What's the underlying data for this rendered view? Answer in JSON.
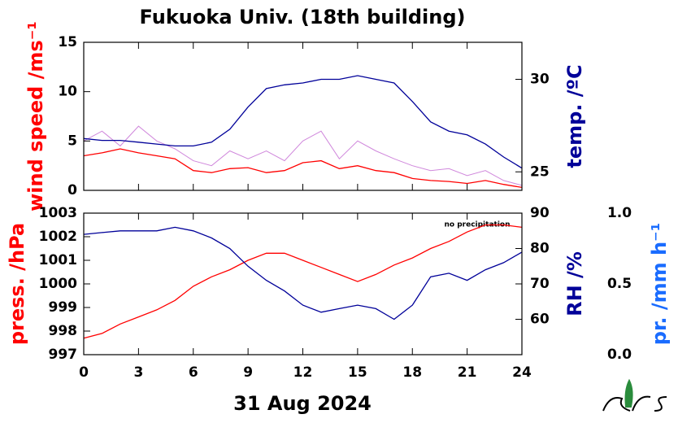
{
  "chart_data": [
    {
      "type": "line",
      "title": "Fukuoka Univ. (18th building)",
      "ylabel": "wind speed /ms⁻¹",
      "y2label": "temp. /ºC",
      "x": [
        0,
        1,
        2,
        3,
        4,
        5,
        6,
        7,
        8,
        9,
        10,
        11,
        12,
        13,
        14,
        15,
        16,
        17,
        18,
        19,
        20,
        21,
        22,
        23,
        24
      ],
      "series": [
        {
          "color": "#d088dc",
          "axis": "y",
          "values": [
            5,
            6,
            4.5,
            6.5,
            5,
            4.2,
            3,
            2.5,
            4,
            3.2,
            4,
            3,
            5,
            6,
            3.2,
            5,
            4,
            3.2,
            2.5,
            2,
            2.2,
            1.5,
            2,
            1,
            0.5
          ]
        },
        {
          "color": "#ff0000",
          "axis": "y",
          "values": [
            3.5,
            3.8,
            4.2,
            3.8,
            3.5,
            3.2,
            2,
            1.8,
            2.2,
            2.3,
            1.8,
            2,
            2.8,
            3,
            2.2,
            2.5,
            2,
            1.8,
            1.2,
            1,
            0.9,
            0.7,
            1,
            0.6,
            0.3
          ]
        },
        {
          "color": "#000099",
          "axis": "y2",
          "values": [
            26.8,
            26.7,
            26.7,
            26.6,
            26.5,
            26.4,
            26.4,
            26.6,
            27.3,
            28.5,
            29.5,
            29.7,
            29.8,
            30,
            30,
            30.2,
            30,
            29.8,
            28.8,
            27.7,
            27.2,
            27,
            26.5,
            25.8,
            25.2
          ]
        }
      ],
      "ylim": [
        0,
        15
      ],
      "yticks": [
        0,
        5,
        10,
        15
      ],
      "y2lim": [
        24,
        32
      ],
      "y2ticks": [
        25,
        30
      ]
    },
    {
      "type": "line",
      "ylabel": "press. /hPa",
      "y2label": "RH /%",
      "y3label": "pr. /mm h⁻¹",
      "xlabel": "31 Aug 2024",
      "annotation": "no precipitation",
      "x": [
        0,
        1,
        2,
        3,
        4,
        5,
        6,
        7,
        8,
        9,
        10,
        11,
        12,
        13,
        14,
        15,
        16,
        17,
        18,
        19,
        20,
        21,
        22,
        23,
        24
      ],
      "series": [
        {
          "color": "#ff0000",
          "axis": "y",
          "values": [
            997.7,
            997.9,
            998.3,
            998.6,
            998.9,
            999.3,
            999.9,
            1000.3,
            1000.6,
            1001,
            1001.3,
            1001.3,
            1001,
            1000.7,
            1000.4,
            1000.1,
            1000.4,
            1000.8,
            1001.1,
            1001.5,
            1001.8,
            1002.2,
            1002.5,
            1002.5,
            1002.4
          ]
        },
        {
          "color": "#000099",
          "axis": "y2",
          "values": [
            84,
            84.5,
            85,
            85,
            85,
            86,
            85,
            83,
            80,
            75,
            71,
            68,
            64,
            62,
            63,
            64,
            63,
            60,
            64,
            72,
            73,
            71,
            74,
            76,
            79
          ]
        }
      ],
      "xlim": [
        0,
        24
      ],
      "xticks": [
        0,
        3,
        6,
        9,
        12,
        15,
        18,
        21,
        24
      ],
      "ylim": [
        997,
        1003
      ],
      "yticks": [
        997,
        998,
        999,
        1000,
        1001,
        1002,
        1003
      ],
      "y2lim": [
        50,
        90
      ],
      "y2ticks": [
        60,
        70,
        80,
        90
      ],
      "y3lim": [
        0,
        1
      ],
      "y3ticks": [
        {
          "value": 0,
          "label": "0.0"
        },
        {
          "value": 0.5,
          "label": "0.5"
        },
        {
          "value": 1,
          "label": "1.0"
        }
      ]
    }
  ]
}
